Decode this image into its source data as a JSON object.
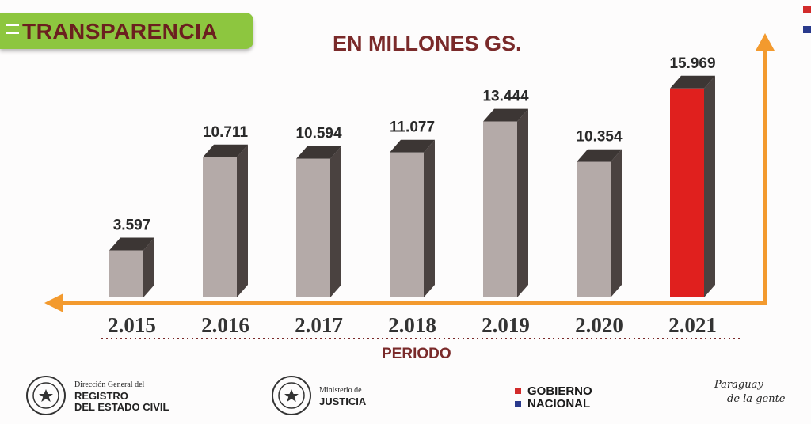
{
  "header": {
    "badge_title": "TRANSPARENCIA",
    "chart_title": "EN MILLONES GS."
  },
  "chart_data": {
    "type": "bar",
    "title": "EN MILLONES GS.",
    "xlabel": "PERIODO",
    "ylabel": "",
    "categories": [
      "2.015",
      "2.016",
      "2.017",
      "2.018",
      "2.019",
      "2.020",
      "2.021"
    ],
    "values": [
      3597,
      10711,
      10594,
      11077,
      13444,
      10354,
      15969
    ],
    "value_labels": [
      "3.597",
      "10.711",
      "10.594",
      "11.077",
      "13.444",
      "10.354",
      "15.969"
    ],
    "highlight_index": 6,
    "ylim": [
      0,
      16500
    ],
    "grid": false,
    "legend": "none",
    "colors": {
      "bar": "#b4aaa8",
      "bar_side": "#4a4240",
      "bar_top": "#3c3634",
      "highlight": "#e0201e",
      "axis": "#f39a2e",
      "text": "#2a2a2a",
      "accent": "#7a2a2a"
    }
  },
  "footer": {
    "registro": {
      "line1": "Dirección General del",
      "line2": "REGISTRO",
      "line3": "DEL ESTADO CIVIL",
      "seal_icon": "paraguay-seal-icon"
    },
    "justicia": {
      "line1": "Ministerio de",
      "line2": "JUSTICIA",
      "seal_icon": "paraguay-seal-icon"
    },
    "gobierno": {
      "line1": "GOBIERNO",
      "line2": "NACIONAL"
    },
    "slogan": {
      "line1": "Paraguay",
      "line2": "de la gente"
    }
  }
}
